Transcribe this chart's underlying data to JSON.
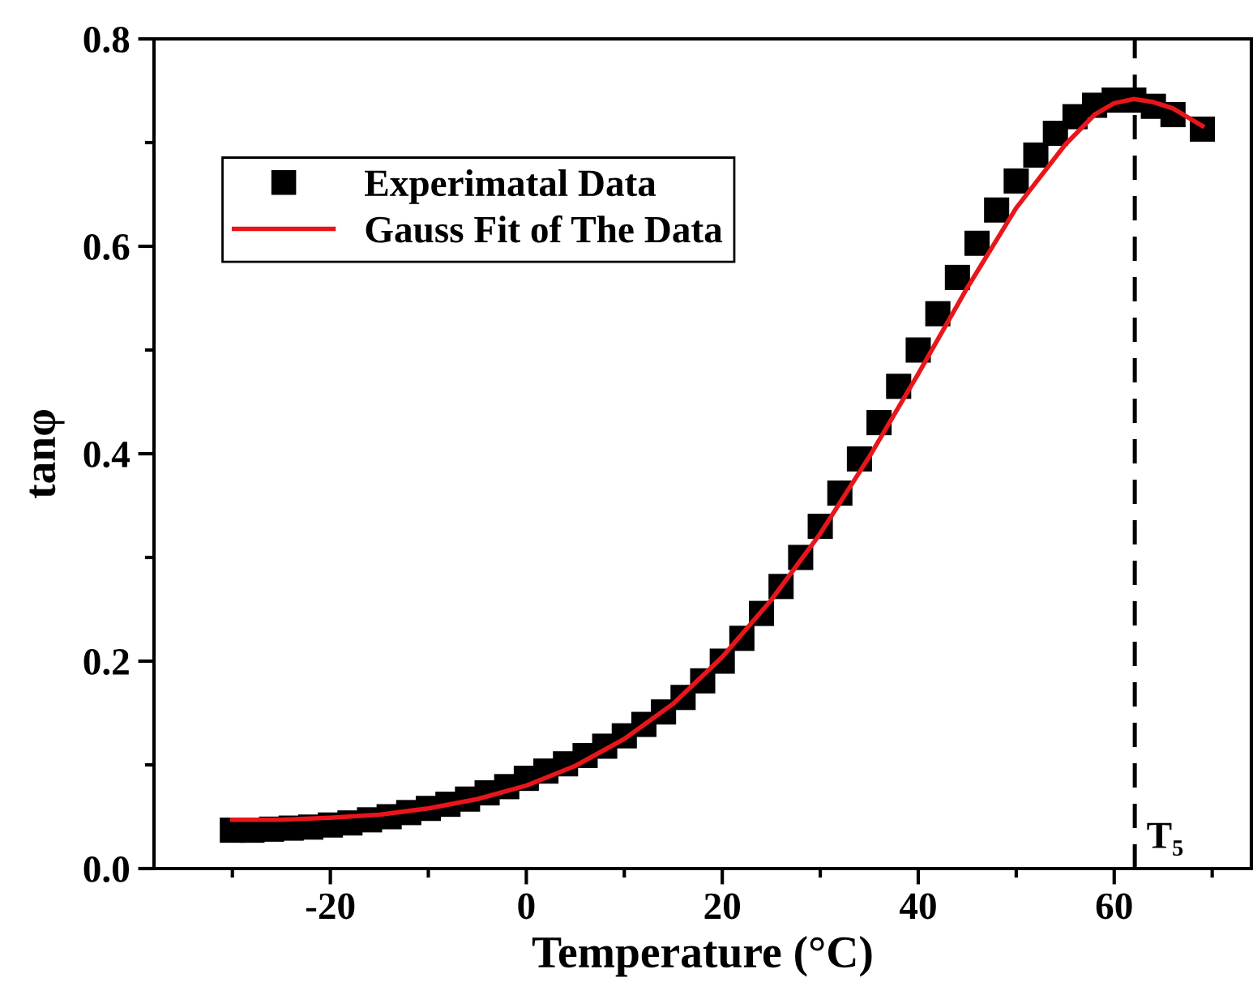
{
  "chart_data": {
    "type": "scatter",
    "xlabel": "Temperature (°C)",
    "ylabel": "tanφ",
    "xlim": [
      -38,
      74
    ],
    "ylim": [
      0,
      0.8
    ],
    "xticks": [
      -20,
      0,
      20,
      40,
      60
    ],
    "yticks": [
      {
        "value": 0,
        "label": "0.0"
      },
      0.2,
      0.4,
      0.6,
      0.8
    ],
    "marker": "square",
    "legend": "top left",
    "grid": false,
    "series": [
      {
        "name": "Experimatal Data",
        "color": "#000000",
        "x": [
          -30,
          -28,
          -26,
          -24,
          -22,
          -20,
          -18,
          -16,
          -14,
          -12,
          -10,
          -8,
          -6,
          -4,
          -2,
          0,
          2,
          4,
          6,
          8,
          10,
          12,
          14,
          16,
          18,
          20,
          22,
          24,
          26,
          28,
          30,
          32,
          34,
          36,
          38,
          40,
          42,
          44,
          46,
          48,
          50,
          52,
          54,
          56,
          58,
          60,
          62,
          64,
          66,
          68,
          69
        ],
        "values": [
          0.037,
          0.037,
          0.038,
          0.039,
          0.04,
          0.042,
          0.044,
          0.047,
          0.05,
          0.054,
          0.058,
          0.062,
          0.067,
          0.073,
          0.079,
          0.087,
          0.094,
          0.101,
          0.109,
          0.118,
          0.128,
          0.139,
          0.151,
          0.165,
          0.181,
          0.2,
          0.222,
          0.246,
          0.272,
          0.3,
          0.33,
          0.362,
          0.395,
          0.43,
          0.465,
          0.5,
          0.535,
          0.57,
          0.603,
          0.635,
          0.663,
          0.688,
          0.709,
          0.725,
          0.736,
          0.741,
          0.741,
          0.735,
          0.727,
          null,
          0.713
        ]
      },
      {
        "name": "Gauss Fit of The Data",
        "color": "#e8161b",
        "type": "line",
        "marker": "none",
        "x": [
          -30,
          -25,
          -20,
          -15,
          -10,
          -5,
          0,
          5,
          10,
          15,
          20,
          25,
          30,
          35,
          40,
          45,
          50,
          55,
          58,
          60,
          62,
          64,
          66,
          69
        ],
        "values": [
          0.047,
          0.047,
          0.049,
          0.052,
          0.058,
          0.067,
          0.08,
          0.099,
          0.125,
          0.159,
          0.204,
          0.259,
          0.323,
          0.397,
          0.477,
          0.56,
          0.637,
          0.698,
          0.727,
          0.738,
          0.742,
          0.739,
          0.733,
          0.716
        ]
      }
    ],
    "ref_lines": [
      {
        "axis": "x",
        "value": 62.1,
        "label": "T₅",
        "color": "#000000",
        "line_style": "dashed"
      }
    ]
  }
}
